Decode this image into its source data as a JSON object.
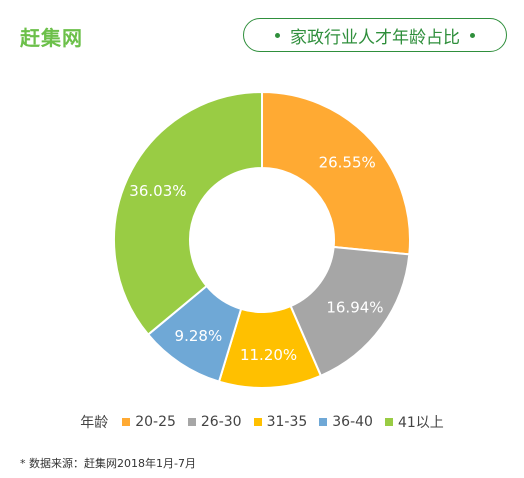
{
  "header": {
    "logo_text": "赶集网",
    "title": "家政行业人才年龄占比"
  },
  "chart_data": {
    "type": "pie",
    "variant": "donut",
    "title": "家政行业人才年龄占比",
    "legend_title": "年龄",
    "legend_position": "bottom",
    "categories": [
      "20-25",
      "26-30",
      "31-35",
      "36-40",
      "41以上"
    ],
    "values": [
      26.55,
      16.94,
      11.2,
      9.28,
      36.03
    ],
    "labels": [
      "26.55%",
      "16.94%",
      "11.20%",
      "9.28%",
      "36.03%"
    ],
    "colors": [
      "#ffaa33",
      "#a6a6a6",
      "#ffc000",
      "#6fa8d6",
      "#99cc44"
    ]
  },
  "footer": {
    "source": "* 数据来源：赶集网2018年1月-7月"
  },
  "colors": {
    "brand_green": "#6cc04a",
    "title_green": "#2f8f3c"
  }
}
